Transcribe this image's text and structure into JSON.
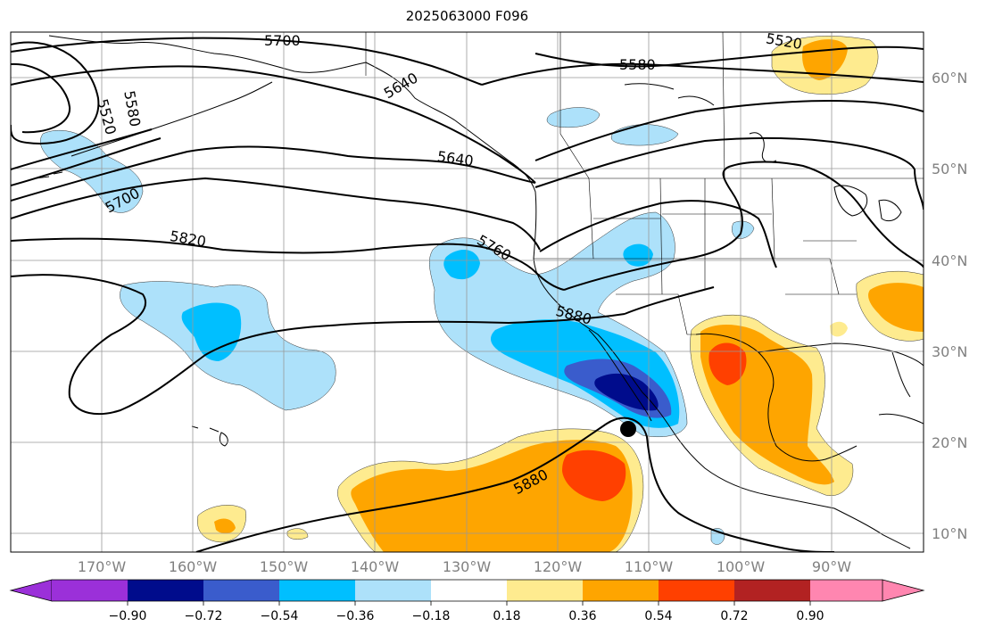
{
  "title": "2025063000 F096",
  "latitude_labels": [
    "60°N",
    "50°N",
    "40°N",
    "30°N",
    "20°N",
    "10°N"
  ],
  "longitude_labels": [
    "170°W",
    "160°W",
    "150°W",
    "140°W",
    "130°W",
    "120°W",
    "110°W",
    "100°W",
    "90°W"
  ],
  "contour_labels": [
    "5700",
    "5640",
    "5520",
    "5580",
    "5520",
    "5580",
    "5640",
    "5700",
    "5820",
    "5760",
    "5880",
    "5880"
  ],
  "colorbar": {
    "tick_labels": [
      "−0.90",
      "−0.72",
      "−0.54",
      "−0.36",
      "−0.18",
      "0.18",
      "0.36",
      "0.54",
      "0.72",
      "0.90"
    ],
    "colors": [
      "#9b30d9",
      "#000c8c",
      "#3a5ccc",
      "#00bfff",
      "#ade1fa",
      "#ffffff",
      "#feeb8f",
      "#fea500",
      "#ff4000",
      "#b22222",
      "#ff86b0"
    ]
  },
  "marker": "storm-center-dot"
}
